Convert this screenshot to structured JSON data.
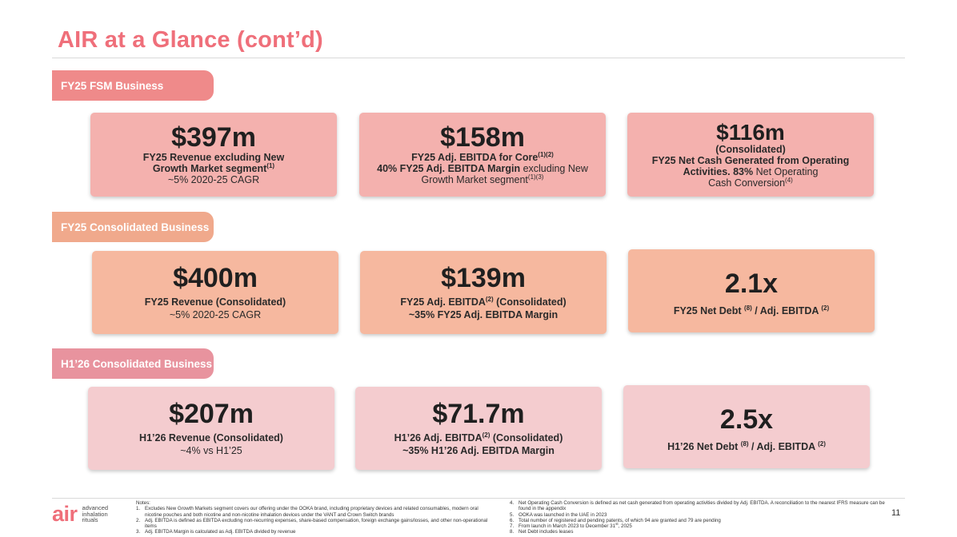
{
  "page": {
    "title": "AIR at a Glance (cont’d)",
    "page_number": "11"
  },
  "sections": {
    "fsm": {
      "tab": "FY25 FSM Business",
      "cards": [
        {
          "value": "$397m",
          "line1_bold": "FY25 Revenue excluding New",
          "line2_bold": "Growth Market segment",
          "line2_sup": "(1)",
          "line3": "~5% 2020-25 CAGR"
        },
        {
          "value": "$158m",
          "line1_bold": "FY25 Adj. EBITDA for Core",
          "line1_sup": "(1)(2)",
          "line2_bold": "40% FY25 Adj. EBITDA Margin",
          "line2_rest": " excluding New",
          "line3": "Growth Market segment",
          "line3_sup": "(1)(3)"
        },
        {
          "value": "$116m",
          "line0_bold": "(Consolidated)",
          "line1_bold": "FY25 Net Cash Generated from Operating",
          "line2_bold": "Activities. 83%",
          "line2_rest": " Net Operating",
          "line3": "Cash Conversion",
          "line3_sup": "(4)"
        }
      ]
    },
    "consolidated": {
      "tab": "FY25 Consolidated Business",
      "cards": [
        {
          "value": "$400m",
          "line1_bold": "FY25 Revenue (Consolidated)",
          "line2": "~5% 2020-25 CAGR"
        },
        {
          "value": "$139m",
          "line1_a": "FY25 Adj. EBITDA",
          "line1_sup": "(2)",
          "line1_b": " (Consolidated)",
          "line2_bold": "~35% FY25 Adj. EBITDA Margin"
        },
        {
          "value": "2.1x",
          "line1_a": "FY25 Net Debt ",
          "line1_sup1": "(8)",
          "line1_b": " / Adj. EBITDA ",
          "line1_sup2": "(2)"
        }
      ]
    },
    "h1": {
      "tab": "H1’26 Consolidated Business",
      "cards": [
        {
          "value": "$207m",
          "line1_bold": "H1’26 Revenue (Consolidated)",
          "line2": "~4% vs H1’25"
        },
        {
          "value": "$71.7m",
          "line1_a": "H1’26 Adj. EBITDA",
          "line1_sup": "(2)",
          "line1_b": " (Consolidated)",
          "line2_bold": "~35% H1’26 Adj. EBITDA Margin"
        },
        {
          "value": "2.5x",
          "line1_a": "H1’26 Net Debt ",
          "line1_sup1": "(8)",
          "line1_b": " / Adj. EBITDA ",
          "line1_sup2": "(2)"
        }
      ]
    }
  },
  "logo": {
    "mark": "air",
    "words": [
      "advanced",
      "inhalation",
      "rituals"
    ]
  },
  "notes": {
    "heading": "Notes:",
    "left": [
      {
        "num": "1.",
        "text": "Excludes New Growth Markets segment covers our offering under the OOKA brand, including proprietary devices and related consumables, modern oral nicotine pouches and both nicotine and non-nicotine inhalation devices under the VANT and Crown Switch brands"
      },
      {
        "num": "2.",
        "text": "Adj. EBITDA is defined as EBITDA excluding  non-recurring expenses, share-based compensation, foreign exchange gains/losses, and other non-operational items"
      },
      {
        "num": "3.",
        "text": "Adj. EBITDA Margin is calculated as Adj. EBITDA divided by revenue"
      }
    ],
    "right": [
      {
        "num": "4.",
        "text": "Net Operating Cash Conversion is defined as net cash generated from operating activities divided by Adj. EBITDA. A reconciliation to the nearest IFRS measure can be found in the appendix"
      },
      {
        "num": "5.",
        "text": "OOKA was launched in the UAE in 2023"
      },
      {
        "num": "6.",
        "text": "Total number of registered and pending patents, of which 94 are granted and 79 are pending"
      },
      {
        "num": "7.",
        "text": "From launch in March 2023 to December 31",
        "sup": "st",
        "tail": ", 2025"
      },
      {
        "num": "8.",
        "text": "Net Debt includes leases"
      }
    ]
  },
  "colors": {
    "title": "#ef6f7a",
    "tab_fsm": "#ef8a8a",
    "tab_consolidated": "#f0a98c",
    "tab_h1": "#e8939e",
    "card_fsm": "#f4b1ae",
    "card_consolidated": "#f6b89f",
    "card_h1": "#f4cccf"
  }
}
